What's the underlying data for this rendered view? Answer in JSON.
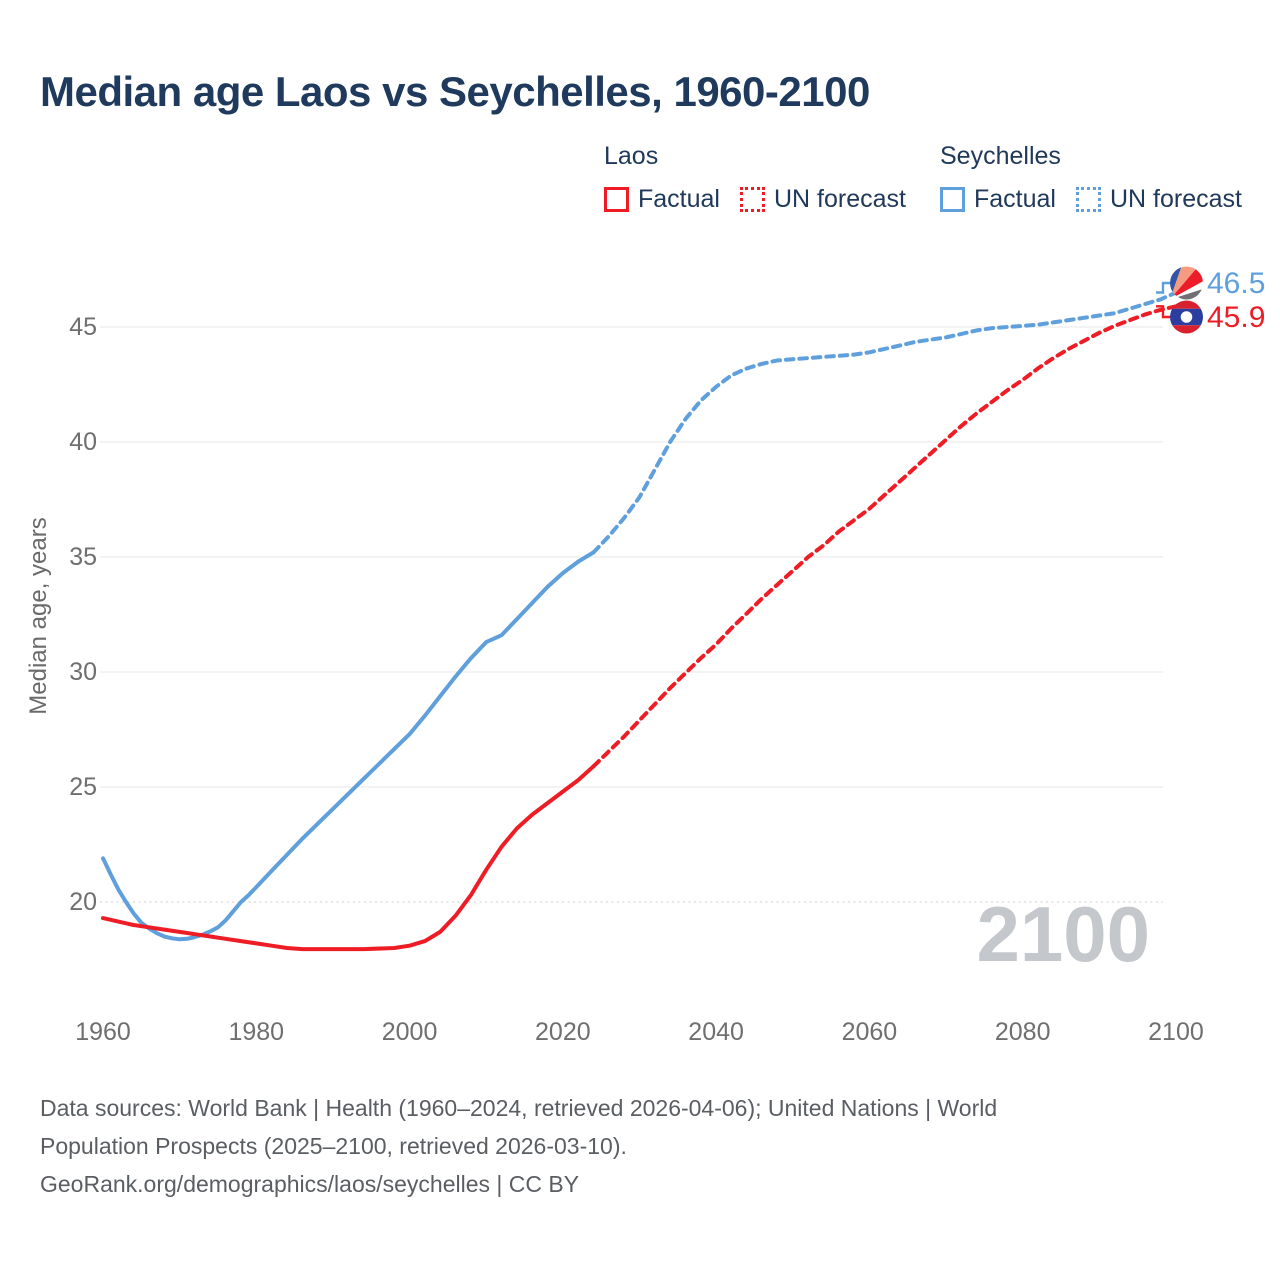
{
  "header": {
    "title": "Median age Laos vs Seychelles, 1960-2100"
  },
  "legend": {
    "groups": [
      {
        "name": "Laos",
        "color": "#ee1c25",
        "items": [
          {
            "label": "Factual",
            "style": "solid"
          },
          {
            "label": "UN forecast",
            "style": "dotted"
          }
        ]
      },
      {
        "name": "Seychelles",
        "color": "#5f9fdc",
        "items": [
          {
            "label": "Factual",
            "style": "solid"
          },
          {
            "label": "UN forecast",
            "style": "dotted"
          }
        ]
      }
    ]
  },
  "chart_data": {
    "type": "line",
    "title": "Median age Laos vs Seychelles, 1960-2100",
    "xlabel": "",
    "ylabel": "Median age, years",
    "xlim": [
      1960,
      2100
    ],
    "ylim": [
      17.5,
      47.5
    ],
    "x_ticks": [
      1960,
      1980,
      2000,
      2020,
      2040,
      2060,
      2080,
      2100
    ],
    "y_ticks": [
      20,
      25,
      30,
      35,
      40,
      45
    ],
    "grid": true,
    "watermark": "2100",
    "watermark_color": "#c4c8cc",
    "grid_color": "#efefef",
    "grid_dotted_color": "#d8d8d8",
    "axis_text_color": "#6f6f6f",
    "legend_position": "top-right",
    "series": [
      {
        "id": "seychelles-factual",
        "name": "Seychelles Factual",
        "color": "#5f9fdc",
        "dash": false,
        "points": [
          [
            1960,
            21.9
          ],
          [
            1961,
            21.2
          ],
          [
            1962,
            20.55
          ],
          [
            1963,
            20.0
          ],
          [
            1964,
            19.5
          ],
          [
            1965,
            19.1
          ],
          [
            1966,
            18.85
          ],
          [
            1967,
            18.65
          ],
          [
            1968,
            18.5
          ],
          [
            1969,
            18.42
          ],
          [
            1970,
            18.38
          ],
          [
            1971,
            18.4
          ],
          [
            1972,
            18.48
          ],
          [
            1973,
            18.58
          ],
          [
            1974,
            18.72
          ],
          [
            1975,
            18.9
          ],
          [
            1976,
            19.2
          ],
          [
            1977,
            19.6
          ],
          [
            1978,
            20.0
          ],
          [
            1979,
            20.3
          ],
          [
            1980,
            20.65
          ],
          [
            1982,
            21.35
          ],
          [
            1984,
            22.05
          ],
          [
            1986,
            22.75
          ],
          [
            1988,
            23.4
          ],
          [
            1990,
            24.05
          ],
          [
            1992,
            24.7
          ],
          [
            1994,
            25.35
          ],
          [
            1996,
            26.0
          ],
          [
            1998,
            26.65
          ],
          [
            2000,
            27.3
          ],
          [
            2002,
            28.1
          ],
          [
            2004,
            28.95
          ],
          [
            2006,
            29.8
          ],
          [
            2008,
            30.6
          ],
          [
            2010,
            31.3
          ],
          [
            2011,
            31.45
          ],
          [
            2012,
            31.6
          ],
          [
            2014,
            32.3
          ],
          [
            2016,
            33.0
          ],
          [
            2018,
            33.7
          ],
          [
            2020,
            34.3
          ],
          [
            2022,
            34.8
          ],
          [
            2024,
            35.2
          ]
        ]
      },
      {
        "id": "seychelles-forecast",
        "name": "Seychelles UN forecast",
        "color": "#5f9fdc",
        "dash": true,
        "points": [
          [
            2024,
            35.2
          ],
          [
            2026,
            35.9
          ],
          [
            2028,
            36.7
          ],
          [
            2030,
            37.6
          ],
          [
            2032,
            38.8
          ],
          [
            2034,
            40.0
          ],
          [
            2036,
            41.0
          ],
          [
            2038,
            41.8
          ],
          [
            2040,
            42.4
          ],
          [
            2042,
            42.9
          ],
          [
            2044,
            43.2
          ],
          [
            2046,
            43.4
          ],
          [
            2048,
            43.55
          ],
          [
            2050,
            43.6
          ],
          [
            2052,
            43.65
          ],
          [
            2054,
            43.7
          ],
          [
            2056,
            43.75
          ],
          [
            2058,
            43.8
          ],
          [
            2060,
            43.9
          ],
          [
            2062,
            44.05
          ],
          [
            2064,
            44.2
          ],
          [
            2066,
            44.35
          ],
          [
            2068,
            44.45
          ],
          [
            2070,
            44.55
          ],
          [
            2072,
            44.7
          ],
          [
            2074,
            44.85
          ],
          [
            2076,
            44.95
          ],
          [
            2078,
            45.0
          ],
          [
            2080,
            45.05
          ],
          [
            2082,
            45.1
          ],
          [
            2084,
            45.2
          ],
          [
            2086,
            45.3
          ],
          [
            2088,
            45.4
          ],
          [
            2090,
            45.5
          ],
          [
            2092,
            45.6
          ],
          [
            2094,
            45.8
          ],
          [
            2096,
            46.0
          ],
          [
            2098,
            46.2
          ],
          [
            2100,
            46.5
          ]
        ]
      },
      {
        "id": "laos-factual",
        "name": "Laos Factual",
        "color": "#ee1c25",
        "dash": false,
        "points": [
          [
            1960,
            19.3
          ],
          [
            1962,
            19.15
          ],
          [
            1964,
            19.0
          ],
          [
            1966,
            18.9
          ],
          [
            1968,
            18.8
          ],
          [
            1970,
            18.7
          ],
          [
            1972,
            18.6
          ],
          [
            1974,
            18.5
          ],
          [
            1976,
            18.4
          ],
          [
            1978,
            18.3
          ],
          [
            1980,
            18.2
          ],
          [
            1982,
            18.1
          ],
          [
            1984,
            18.0
          ],
          [
            1986,
            17.95
          ],
          [
            1990,
            17.95
          ],
          [
            1994,
            17.95
          ],
          [
            1998,
            18.0
          ],
          [
            2000,
            18.1
          ],
          [
            2002,
            18.3
          ],
          [
            2004,
            18.7
          ],
          [
            2006,
            19.4
          ],
          [
            2008,
            20.3
          ],
          [
            2010,
            21.4
          ],
          [
            2012,
            22.4
          ],
          [
            2014,
            23.2
          ],
          [
            2016,
            23.8
          ],
          [
            2018,
            24.3
          ],
          [
            2020,
            24.8
          ],
          [
            2022,
            25.3
          ],
          [
            2024,
            25.9
          ]
        ]
      },
      {
        "id": "laos-forecast",
        "name": "Laos UN forecast",
        "color": "#ee1c25",
        "dash": true,
        "points": [
          [
            2024,
            25.9
          ],
          [
            2026,
            26.55
          ],
          [
            2028,
            27.2
          ],
          [
            2030,
            27.9
          ],
          [
            2032,
            28.6
          ],
          [
            2034,
            29.3
          ],
          [
            2036,
            29.95
          ],
          [
            2038,
            30.6
          ],
          [
            2040,
            31.2
          ],
          [
            2042,
            31.9
          ],
          [
            2044,
            32.55
          ],
          [
            2046,
            33.2
          ],
          [
            2048,
            33.8
          ],
          [
            2050,
            34.4
          ],
          [
            2052,
            35.0
          ],
          [
            2054,
            35.5
          ],
          [
            2056,
            36.1
          ],
          [
            2058,
            36.6
          ],
          [
            2060,
            37.1
          ],
          [
            2062,
            37.7
          ],
          [
            2064,
            38.3
          ],
          [
            2066,
            38.9
          ],
          [
            2068,
            39.5
          ],
          [
            2070,
            40.1
          ],
          [
            2072,
            40.7
          ],
          [
            2074,
            41.25
          ],
          [
            2076,
            41.75
          ],
          [
            2078,
            42.25
          ],
          [
            2080,
            42.7
          ],
          [
            2082,
            43.2
          ],
          [
            2084,
            43.65
          ],
          [
            2086,
            44.05
          ],
          [
            2088,
            44.4
          ],
          [
            2090,
            44.75
          ],
          [
            2092,
            45.05
          ],
          [
            2094,
            45.3
          ],
          [
            2096,
            45.55
          ],
          [
            2098,
            45.75
          ],
          [
            2100,
            45.9
          ]
        ]
      }
    ],
    "end_labels": [
      {
        "series_id": "seychelles-forecast",
        "value": "46.5",
        "color": "#5f9fdc",
        "flag": "seychelles"
      },
      {
        "series_id": "laos-forecast",
        "value": "45.9",
        "color": "#ee1c25",
        "flag": "laos"
      }
    ],
    "flag_colors": {
      "seychelles": [
        "#3254a4",
        "#f59b80",
        "#ed1c2b",
        "#ffffff",
        "#6e7073"
      ],
      "laos": {
        "red": "#d7212f",
        "blue": "#2b3e9f",
        "circle": "#ffffff"
      }
    }
  },
  "footer": {
    "line1": "Data sources: World Bank | Health (1960–2024, retrieved 2026-04-06); United Nations | World",
    "line2": "Population Prospects (2025–2100, retrieved 2026-03-10).",
    "line3": "GeoRank.org/demographics/laos/seychelles | CC BY"
  }
}
